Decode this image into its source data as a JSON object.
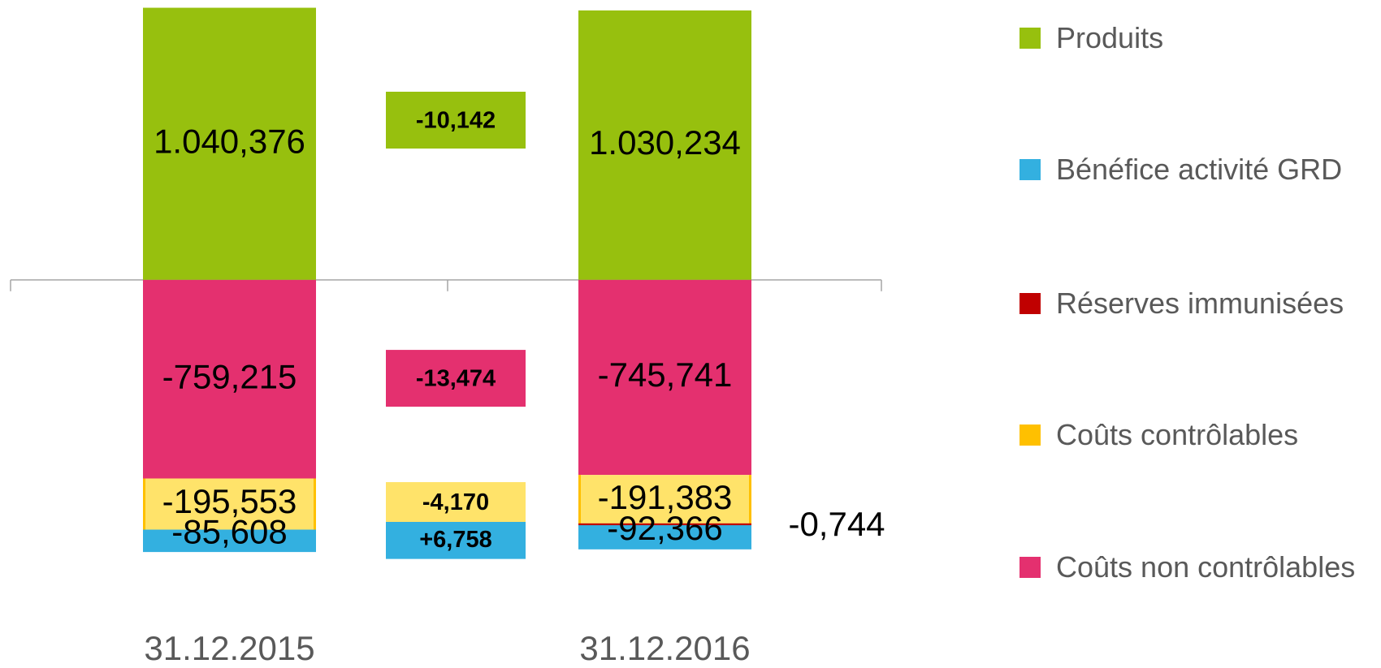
{
  "chart_data": {
    "type": "stacked_bar",
    "categories": [
      "31.12.2015",
      "31.12.2016"
    ],
    "ylim": [
      -1400,
      1070
    ],
    "series": [
      {
        "name": "Produits",
        "color": "#97c00e",
        "values": [
          1040.376,
          1030.234
        ],
        "value_labels": [
          "1.040,376",
          "1.030,234"
        ],
        "change": -10.142,
        "change_label": "-10,142"
      },
      {
        "name": "Bénéfice activité GRD",
        "color": "#33b0e0",
        "values": [
          -85.608,
          -92.366
        ],
        "value_labels": [
          "-85,608",
          "-92,366"
        ],
        "change": 6.758,
        "change_label": "+6,758"
      },
      {
        "name": "Réserves immunisées",
        "color": "#c00000",
        "values": [
          null,
          -0.744
        ],
        "value_labels": [
          null,
          "-0,744"
        ]
      },
      {
        "name": "Coûts contrôlables",
        "color": "#ffc000",
        "values": [
          -195.553,
          -191.383
        ],
        "value_labels": [
          "-195,553",
          "-191,383"
        ],
        "change": -4.17,
        "change_label": "-4,170"
      },
      {
        "name": "Coûts non contrôlables",
        "color": "#e4306f",
        "values": [
          -759.215,
          -745.741
        ],
        "value_labels": [
          "-759,215",
          "-745,741"
        ],
        "change": -13.474,
        "change_label": "-13,474"
      }
    ]
  }
}
